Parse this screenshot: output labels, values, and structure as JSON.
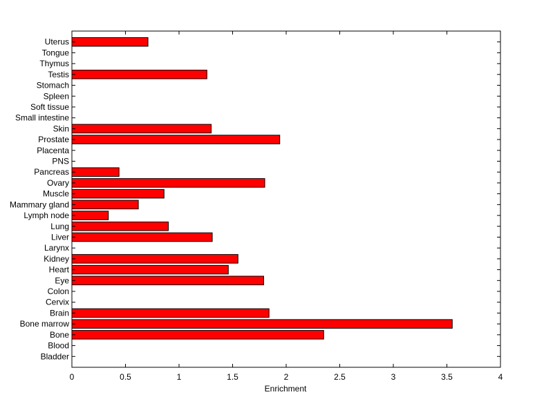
{
  "chart_data": {
    "type": "bar",
    "orientation": "horizontal",
    "title": "",
    "xlabel": "Enrichment",
    "ylabel": "",
    "xlim": [
      0,
      4
    ],
    "xticks": [
      0,
      0.5,
      1,
      1.5,
      2,
      2.5,
      3,
      3.5,
      4
    ],
    "xtick_labels": [
      "0",
      "0.5",
      "1",
      "1.5",
      "2",
      "2.5",
      "3",
      "3.5",
      "4"
    ],
    "grid": false,
    "legend": "none",
    "bar_color": "#ff0000",
    "bar_edge_color": "#000000",
    "categories": [
      "Bladder",
      "Blood",
      "Bone",
      "Bone marrow",
      "Brain",
      "Cervix",
      "Colon",
      "Eye",
      "Heart",
      "Kidney",
      "Larynx",
      "Liver",
      "Lung",
      "Lymph node",
      "Mammary gland",
      "Muscle",
      "Ovary",
      "Pancreas",
      "PNS",
      "Placenta",
      "Prostate",
      "Skin",
      "Small intestine",
      "Soft tissue",
      "Spleen",
      "Stomach",
      "Testis",
      "Thymus",
      "Tongue",
      "Uterus"
    ],
    "values": [
      0,
      0,
      2.35,
      3.55,
      1.84,
      0,
      0,
      1.79,
      1.46,
      1.55,
      0,
      1.31,
      0.9,
      0.34,
      0.62,
      0.86,
      1.8,
      0.44,
      0,
      0,
      1.94,
      1.3,
      0,
      0,
      0,
      0,
      1.26,
      0,
      0,
      0.71
    ]
  }
}
